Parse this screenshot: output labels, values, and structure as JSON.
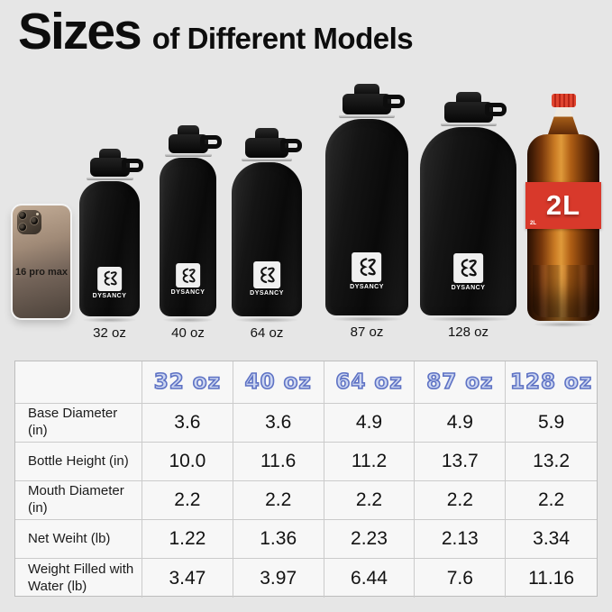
{
  "title": {
    "big": "Sizes",
    "rest": "of Different Models"
  },
  "lineup": {
    "phone_label": "16 pro max",
    "brand": "DYSANCY",
    "bottles": [
      {
        "label": "32 oz"
      },
      {
        "label": "40 oz"
      },
      {
        "label": "64 oz"
      },
      {
        "label": "87 oz"
      },
      {
        "label": "128 oz"
      }
    ],
    "cola_label": "2L",
    "cola_label_small": "2L"
  },
  "table": {
    "columns": [
      "32 oz",
      "40 oz",
      "64 oz",
      "87 oz",
      "128 oz"
    ],
    "rows": [
      {
        "label": "Base Diameter (in)",
        "values": [
          "3.6",
          "3.6",
          "4.9",
          "4.9",
          "5.9"
        ]
      },
      {
        "label": "Bottle Height (in)",
        "values": [
          "10.0",
          "11.6",
          "11.2",
          "13.7",
          "13.2"
        ]
      },
      {
        "label": "Mouth Diameter (in)",
        "values": [
          "2.2",
          "2.2",
          "2.2",
          "2.2",
          "2.2"
        ]
      },
      {
        "label": "Net Weiht (lb)",
        "values": [
          "1.22",
          "1.36",
          "2.23",
          "2.13",
          "3.34"
        ]
      },
      {
        "label": "Weight Filled with Water (lb)",
        "values": [
          "3.47",
          "3.97",
          "6.44",
          "7.6",
          "11.16"
        ]
      }
    ]
  },
  "chart_data": {
    "type": "table",
    "columns": [
      "32 oz",
      "40 oz",
      "64 oz",
      "87 oz",
      "128 oz"
    ],
    "rows": [
      {
        "label": "Base Diameter (in)",
        "values": [
          3.6,
          3.6,
          4.9,
          4.9,
          5.9
        ]
      },
      {
        "label": "Bottle Height (in)",
        "values": [
          10.0,
          11.6,
          11.2,
          13.7,
          13.2
        ]
      },
      {
        "label": "Mouth Diameter (in)",
        "values": [
          2.2,
          2.2,
          2.2,
          2.2,
          2.2
        ]
      },
      {
        "label": "Net Weiht (lb)",
        "values": [
          1.22,
          1.36,
          2.23,
          2.13,
          3.34
        ]
      },
      {
        "label": "Weight Filled with Water (lb)",
        "values": [
          3.47,
          3.97,
          6.44,
          7.6,
          11.16
        ]
      }
    ]
  },
  "colors": {
    "page_bg": "#e6e6e6",
    "table_bg": "#f7f7f7",
    "header_text_fill": "#ccd6f1",
    "header_text_outline": "#5e72c4",
    "cola_red": "#d8392b",
    "bottle_black": "#141414"
  }
}
